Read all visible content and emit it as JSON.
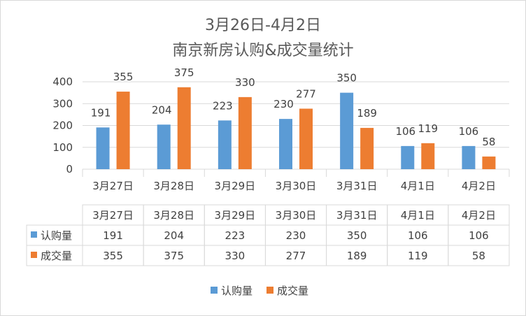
{
  "chart_data": {
    "type": "bar",
    "title_line1": "3月26日-4月2日",
    "title_line2": "南京新房认购&成交量统计",
    "categories": [
      "3月27日",
      "3月28日",
      "3月29日",
      "3月30日",
      "3月31日",
      "4月1日",
      "4月2日"
    ],
    "series": [
      {
        "name": "认购量",
        "color": "#5b9bd5",
        "values": [
          191,
          204,
          223,
          230,
          350,
          106,
          106
        ]
      },
      {
        "name": "成交量",
        "color": "#ed7d31",
        "values": [
          355,
          375,
          330,
          277,
          189,
          119,
          58
        ]
      }
    ],
    "ylim": [
      0,
      400
    ],
    "yticks": [
      0,
      100,
      200,
      300,
      400
    ],
    "grid": true,
    "data_table": true,
    "legend_position": "bottom"
  }
}
